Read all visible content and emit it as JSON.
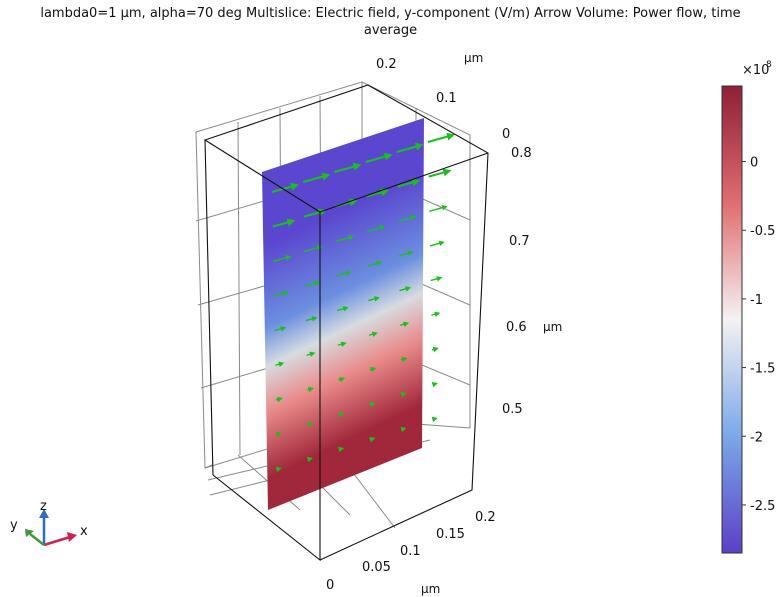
{
  "title": "lambda0=1 µm, alpha=70 deg Multislice: Electric field, y-component (V/m)  Arrow Volume: Power flow, time\naverage",
  "chart_data": {
    "type": "heatmap",
    "plot_kind": "3D multislice with arrow volume",
    "axes": {
      "x": {
        "label": "µm",
        "ticks": [
          "0",
          "0.05",
          "0.1",
          "0.15",
          "0.2"
        ],
        "range": [
          0,
          0.2
        ]
      },
      "y": {
        "label": "µm",
        "ticks": [
          "0",
          "0.1",
          "0.2"
        ],
        "range": [
          0,
          0.2
        ]
      },
      "z": {
        "label": "µm",
        "ticks": [
          "0.5",
          "0.6",
          "0.7",
          "0.8"
        ],
        "range": [
          0.45,
          0.85
        ]
      }
    },
    "triad": {
      "x": "x",
      "y": "y",
      "z": "z"
    },
    "grid": true,
    "colorbar": {
      "multiplier": "×10",
      "exponent": "8",
      "ticks": [
        "0",
        "-0.5",
        "-1",
        "-1.5",
        "-2",
        "-2.5"
      ],
      "range": [
        -2.85,
        0.55
      ],
      "colormap": [
        "#5b3fc8",
        "#7aa8e8",
        "#f4f2f2",
        "#e06d6f",
        "#8e1f35"
      ]
    },
    "slice": {
      "field": "Electric field, y-component (V/m)",
      "color_low_region": "blue (top)",
      "color_high_region": "red (bottom)"
    },
    "arrows": {
      "quantity": "Power flow, time average",
      "color": "#17c217",
      "rows": 9,
      "columns": 6
    }
  }
}
